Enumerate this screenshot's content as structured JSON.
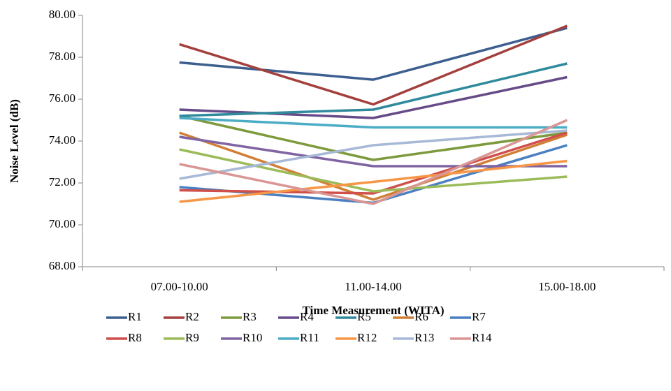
{
  "chart_data": {
    "type": "line",
    "x_label": "Time Measurement (WITA)",
    "y_label": "Noise Level (dB)",
    "categories": [
      "07.00-10.00",
      "11.00-14.00",
      "15.00-18.00"
    ],
    "ylim": [
      68,
      80
    ],
    "yticks": [
      {
        "value": 68,
        "label": "68.00"
      },
      {
        "value": 70,
        "label": "70.00"
      },
      {
        "value": 72,
        "label": "72.00"
      },
      {
        "value": 74,
        "label": "74.00"
      },
      {
        "value": 76,
        "label": "76.00"
      },
      {
        "value": 78,
        "label": "78.00"
      },
      {
        "value": 80,
        "label": "80.00"
      }
    ],
    "series": [
      {
        "name": "R1",
        "color": "#3c5f8f",
        "values": [
          77.75,
          76.93,
          79.4
        ]
      },
      {
        "name": "R2",
        "color": "#a3403d",
        "values": [
          78.62,
          75.75,
          79.5
        ]
      },
      {
        "name": "R3",
        "color": "#7d9a3c",
        "values": [
          75.2,
          73.1,
          74.4
        ]
      },
      {
        "name": "R4",
        "color": "#664b88",
        "values": [
          75.5,
          75.1,
          77.05
        ]
      },
      {
        "name": "R5",
        "color": "#2f8a9c",
        "values": [
          75.2,
          75.5,
          77.7
        ]
      },
      {
        "name": "R6",
        "color": "#d17f36",
        "values": [
          74.4,
          71.2,
          74.3
        ]
      },
      {
        "name": "R7",
        "color": "#4a7fc1",
        "values": [
          71.8,
          71.05,
          73.8
        ]
      },
      {
        "name": "R8",
        "color": "#cf4f4b",
        "values": [
          71.65,
          71.5,
          74.4
        ]
      },
      {
        "name": "R9",
        "color": "#9bbb59",
        "values": [
          73.6,
          71.6,
          72.3
        ]
      },
      {
        "name": "R10",
        "color": "#8064a2",
        "values": [
          74.2,
          72.8,
          72.8
        ]
      },
      {
        "name": "R11",
        "color": "#4bacc6",
        "values": [
          75.1,
          74.65,
          74.65
        ]
      },
      {
        "name": "R12",
        "color": "#f79646",
        "values": [
          71.1,
          72.05,
          73.05
        ]
      },
      {
        "name": "R13",
        "color": "#a7b9d6",
        "values": [
          72.2,
          73.8,
          74.5
        ]
      },
      {
        "name": "R14",
        "color": "#d99694",
        "values": [
          72.9,
          71.0,
          75.0
        ]
      }
    ]
  }
}
